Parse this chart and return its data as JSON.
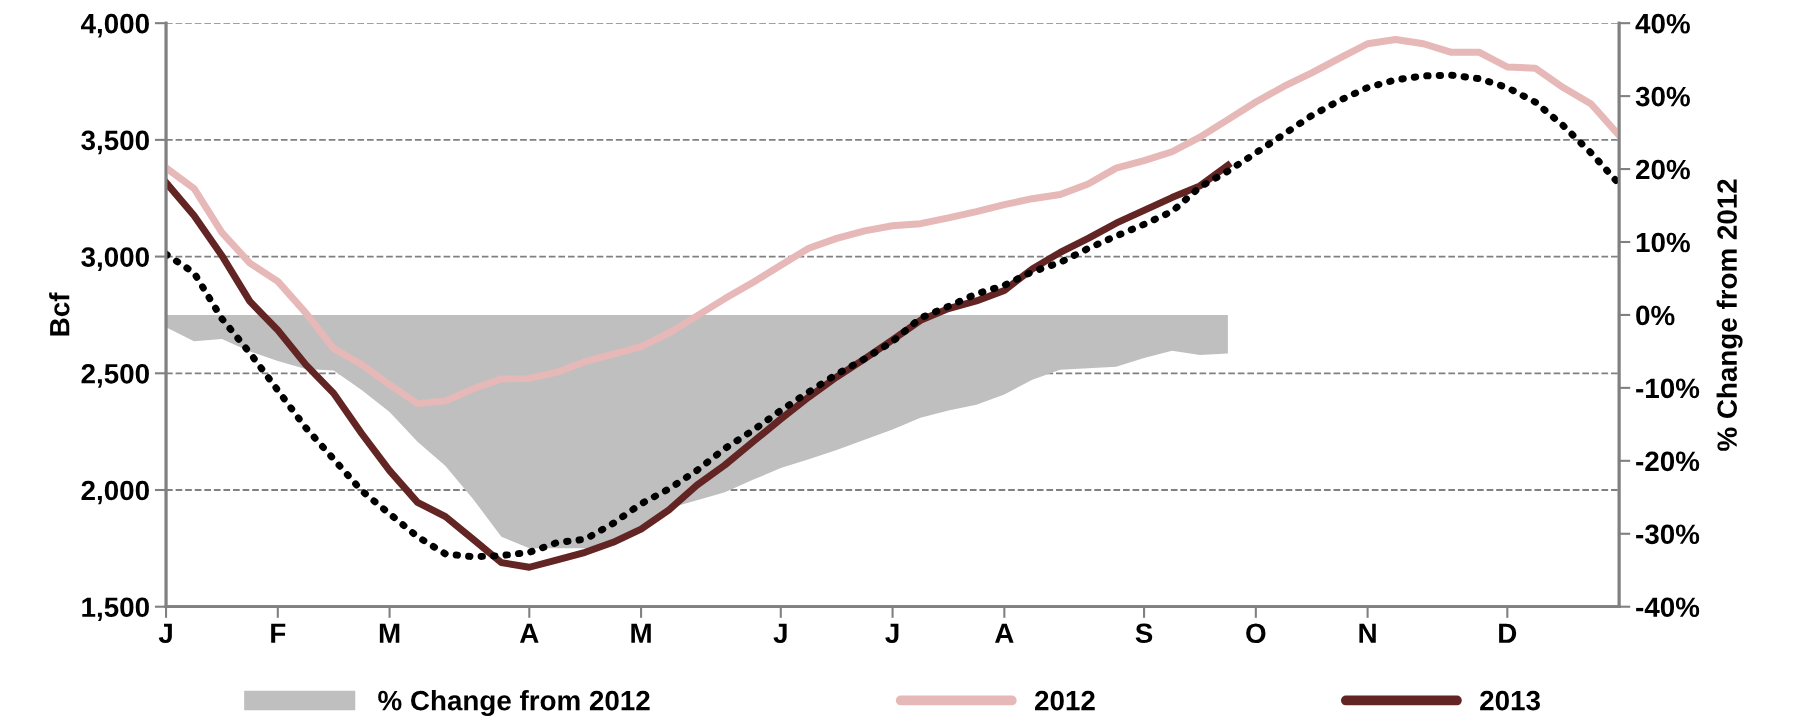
{
  "chart_data": {
    "type": "line",
    "categories": [
      "J",
      null,
      null,
      null,
      "F",
      null,
      null,
      null,
      "M",
      null,
      null,
      null,
      null,
      "A",
      null,
      null,
      null,
      "M",
      null,
      null,
      null,
      null,
      "J",
      null,
      null,
      null,
      "J",
      null,
      null,
      null,
      "A",
      null,
      null,
      null,
      null,
      "S",
      null,
      null,
      null,
      "O",
      null,
      null,
      null,
      "N",
      null,
      null,
      null,
      null,
      "D",
      null,
      null,
      null,
      null
    ],
    "ylabel": "Bcf",
    "y2label": "% Change from 2012",
    "ylim": [
      1500,
      4000
    ],
    "yticks": [
      {
        "value": 1500,
        "label": "1,500"
      },
      {
        "value": 2000,
        "label": "2,000"
      },
      {
        "value": 2500,
        "label": "2,500"
      },
      {
        "value": 3000,
        "label": "3,000"
      },
      {
        "value": 3500,
        "label": "3,500"
      },
      {
        "value": 4000,
        "label": "4,000"
      }
    ],
    "y2lim": [
      -40,
      40
    ],
    "y2ticks": [
      {
        "value": -40,
        "label": "-40%"
      },
      {
        "value": -30,
        "label": "-30%"
      },
      {
        "value": -20,
        "label": "-20%"
      },
      {
        "value": -10,
        "label": "-10%"
      },
      {
        "value": 0,
        "label": "0%"
      },
      {
        "value": 10,
        "label": "10%"
      },
      {
        "value": 20,
        "label": "20%"
      },
      {
        "value": 30,
        "label": "30%"
      },
      {
        "value": 40,
        "label": "40%"
      }
    ],
    "grid": "y",
    "legend": "bottom",
    "series": [
      {
        "name": "% Change from 2012",
        "type": "area",
        "axis": "y2",
        "color": "#bfbfbf",
        "values": [
          -1.7,
          -3.6,
          -3.3,
          -5.0,
          -6.3,
          -7.4,
          -7.6,
          -10.3,
          -13.3,
          -17.4,
          -20.7,
          -25.3,
          -30.4,
          -32.0,
          -32.0,
          -32.0,
          -31.2,
          -28.8,
          -26.5,
          -25.4,
          -24.3,
          -22.6,
          -21.0,
          -19.8,
          -18.5,
          -17.1,
          -15.7,
          -14.1,
          -13.1,
          -12.3,
          -10.9,
          -8.9,
          -7.5,
          -7.3,
          -7.1,
          -5.9,
          -4.9,
          -5.5,
          -5.3,
          null,
          null,
          null,
          null,
          null,
          null,
          null,
          null,
          null,
          null,
          null,
          null,
          null,
          null
        ]
      },
      {
        "name": "2012",
        "color": "#e6b8b7",
        "line_style": "solid",
        "values": [
          3380,
          3292,
          3103,
          2972,
          2894,
          2759,
          2606,
          2537,
          2451,
          2370,
          2382,
          2434,
          2476,
          2478,
          2505,
          2550,
          2582,
          2614,
          2673,
          2746,
          2820,
          2889,
          2963,
          3036,
          3078,
          3110,
          3132,
          3141,
          3166,
          3193,
          3223,
          3248,
          3266,
          3311,
          3379,
          3411,
          3449,
          3512,
          3587,
          3662,
          3729,
          3787,
          3850,
          3912,
          3930,
          3912,
          3875,
          3875,
          3812,
          3807,
          3724,
          3654,
          3519
        ]
      },
      {
        "name": "2013",
        "color": "#632523",
        "line_style": "solid",
        "values": [
          3317,
          3176,
          3004,
          2808,
          2685,
          2537,
          2414,
          2242,
          2083,
          1947,
          1886,
          1788,
          1689,
          1669,
          1701,
          1733,
          1776,
          1832,
          1915,
          2021,
          2107,
          2206,
          2304,
          2398,
          2484,
          2562,
          2643,
          2727,
          2777,
          2810,
          2855,
          2947,
          3018,
          3078,
          3143,
          3198,
          3253,
          3303,
          3391,
          null,
          null,
          null,
          null,
          null,
          null,
          null,
          null,
          null,
          null,
          null,
          null,
          null,
          null
        ]
      },
      {
        "color": "#000000",
        "line_style": "dotted",
        "values": [
          3010,
          2931,
          2734,
          2587,
          2427,
          2267,
          2132,
          1997,
          1898,
          1800,
          1726,
          1714,
          1719,
          1733,
          1775,
          1789,
          1857,
          1941,
          2005,
          2084,
          2178,
          2255,
          2341,
          2420,
          2496,
          2562,
          2636,
          2737,
          2787,
          2840,
          2877,
          2935,
          2975,
          3035,
          3088,
          3138,
          3193,
          3298,
          3366,
          3444,
          3524,
          3604,
          3669,
          3724,
          3757,
          3774,
          3777,
          3762,
          3724,
          3662,
          3561,
          3444,
          3311
        ]
      }
    ]
  }
}
